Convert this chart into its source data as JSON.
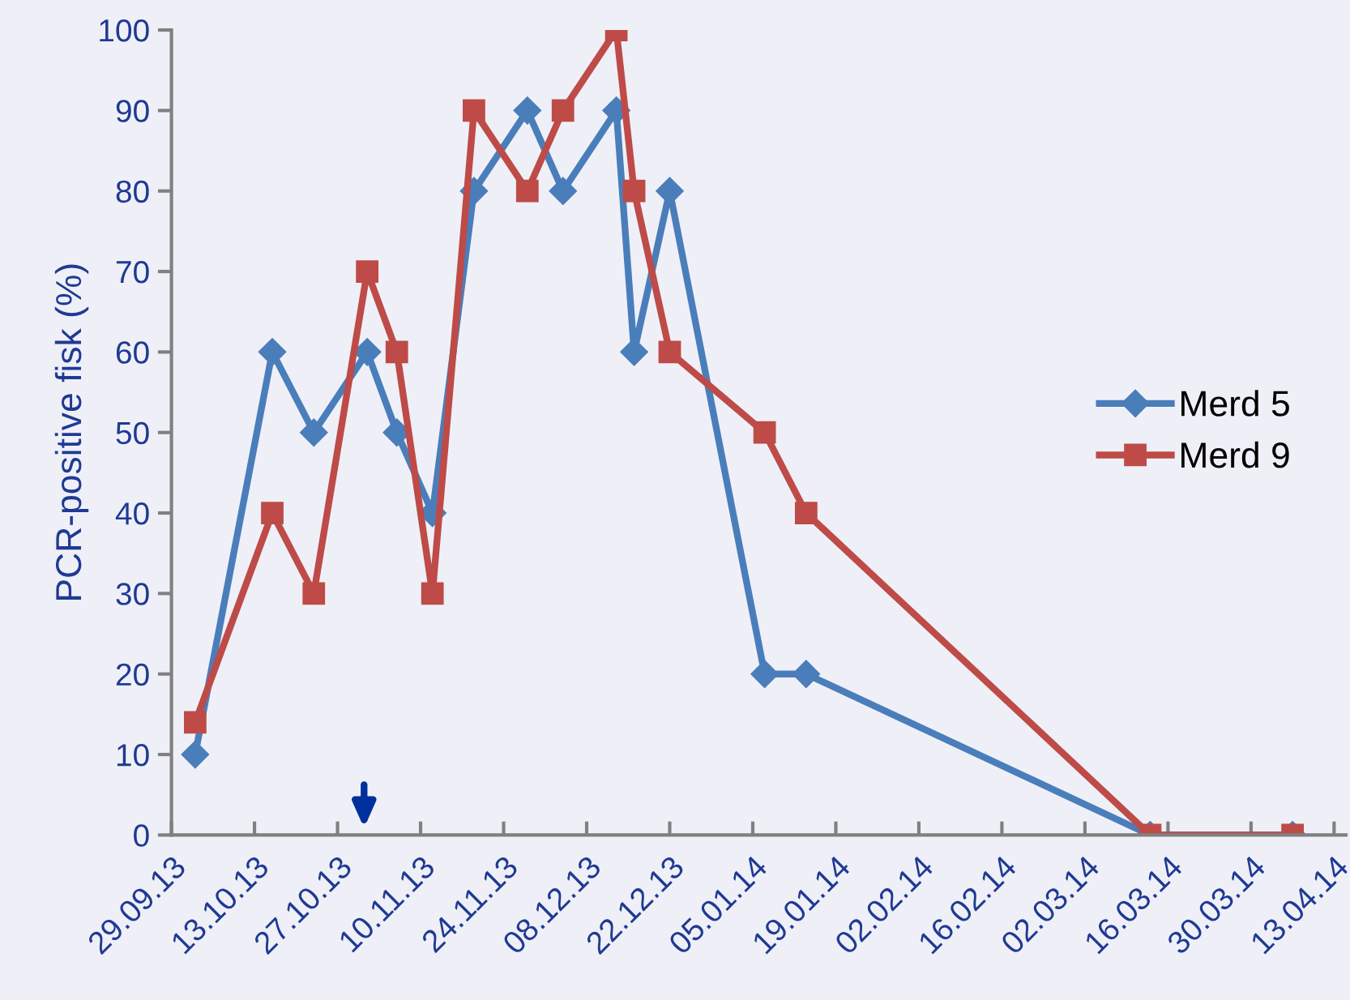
{
  "chart_data": {
    "type": "line",
    "ylabel": "PCR-positive fisk (%)",
    "x": [
      "2013-10-03",
      "2013-10-16",
      "2013-10-23",
      "2013-11-01",
      "2013-11-06",
      "2013-11-12",
      "2013-11-19",
      "2013-11-28",
      "2013-12-04",
      "2013-12-13",
      "2013-12-16",
      "2013-12-22",
      "2014-01-07",
      "2014-01-14",
      "2014-03-13",
      "2014-04-06"
    ],
    "series": [
      {
        "name": "Merd 5",
        "color": "#4a7ebb",
        "marker": "diamond",
        "values": [
          10,
          60,
          50,
          60,
          50,
          40,
          80,
          90,
          80,
          90,
          60,
          80,
          20,
          20,
          0,
          0
        ]
      },
      {
        "name": "Merd 9",
        "color": "#be4b48",
        "marker": "square",
        "values": [
          14,
          40,
          30,
          70,
          60,
          30,
          90,
          80,
          90,
          100,
          80,
          60,
          50,
          40,
          0,
          0
        ]
      }
    ],
    "xlim": [
      "2013-09-29",
      "2014-04-15"
    ],
    "xticks": [
      {
        "value": "2013-09-29",
        "label": "29.09.13"
      },
      {
        "value": "2013-10-13",
        "label": "13.10.13"
      },
      {
        "value": "2013-10-27",
        "label": "27.10.13"
      },
      {
        "value": "2013-11-10",
        "label": "10.11.13"
      },
      {
        "value": "2013-11-24",
        "label": "24.11.13"
      },
      {
        "value": "2013-12-08",
        "label": "08.12.13"
      },
      {
        "value": "2013-12-22",
        "label": "22.12.13"
      },
      {
        "value": "2014-01-05",
        "label": "05.01.14"
      },
      {
        "value": "2014-01-19",
        "label": "19.01.14"
      },
      {
        "value": "2014-02-02",
        "label": "02.02.14"
      },
      {
        "value": "2014-02-16",
        "label": "16.02.14"
      },
      {
        "value": "2014-03-02",
        "label": "02.03.14"
      },
      {
        "value": "2014-03-16",
        "label": "16.03.14"
      },
      {
        "value": "2014-03-30",
        "label": "30.03.14"
      },
      {
        "value": "2014-04-13",
        "label": "13.04.14"
      }
    ],
    "ylim": [
      0,
      100
    ],
    "yticks": [
      0,
      10,
      20,
      30,
      40,
      50,
      60,
      70,
      80,
      90,
      100
    ],
    "grid": false,
    "legend": "right",
    "line_style": "solid"
  }
}
